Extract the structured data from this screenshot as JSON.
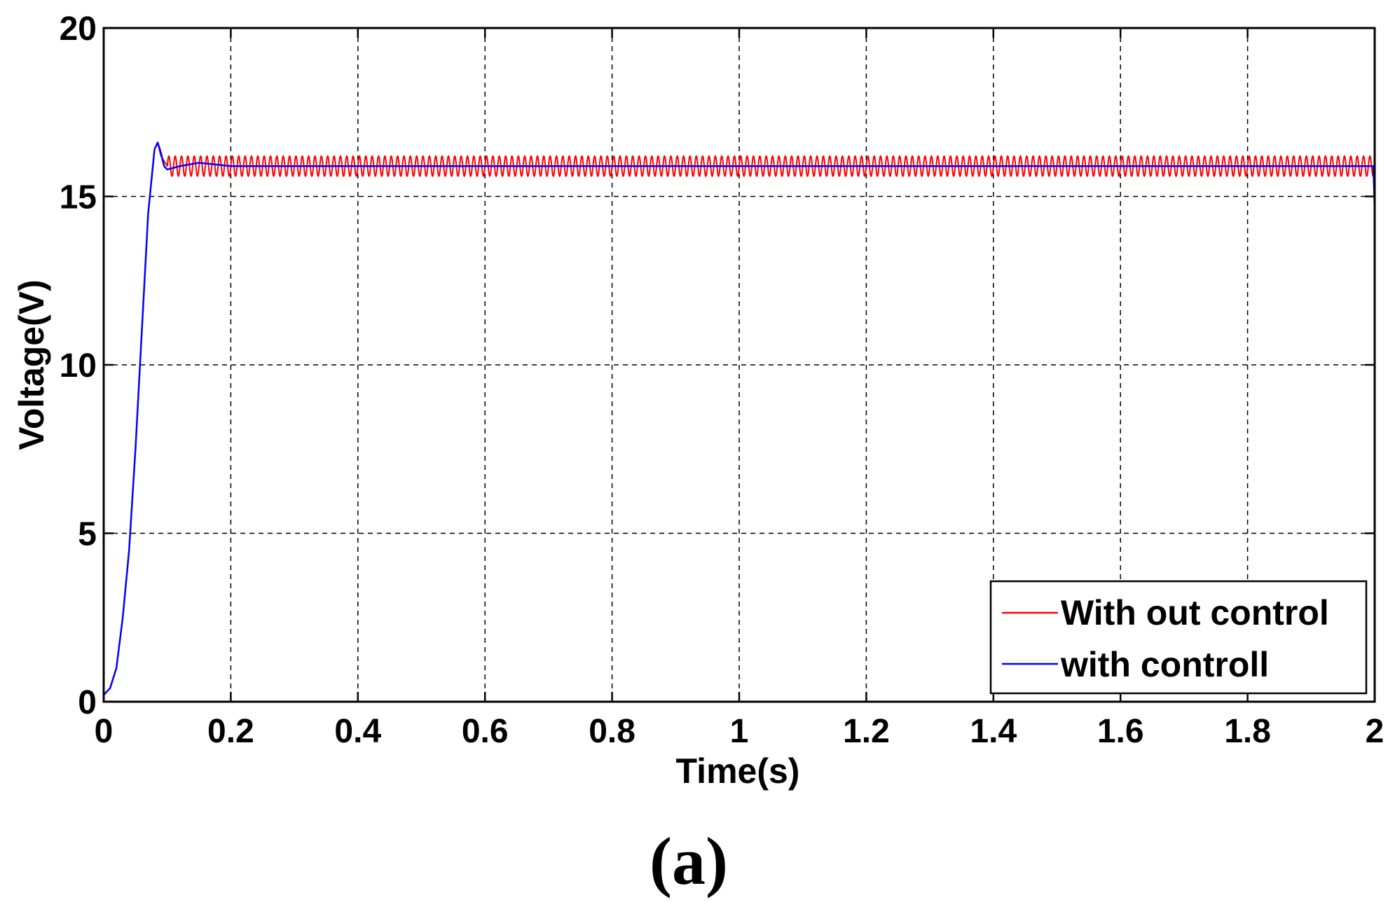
{
  "chart_data": {
    "type": "line",
    "xlabel": "Time(s)",
    "ylabel": "Voltage(V)",
    "xlim": [
      0,
      2
    ],
    "ylim": [
      0,
      20
    ],
    "xticks": [
      "0",
      "0.2",
      "0.4",
      "0.6",
      "0.8",
      "1",
      "1.2",
      "1.4",
      "1.6",
      "1.8",
      "2"
    ],
    "yticks": [
      "0",
      "5",
      "10",
      "15",
      "20"
    ],
    "grid": true,
    "legend_position": "bottom-right",
    "series": [
      {
        "name": "With out control",
        "color": "#ff0000",
        "x": [
          0,
          0.01,
          0.02,
          0.03,
          0.04,
          0.05,
          0.06,
          0.07,
          0.08,
          0.085,
          0.09,
          0.1,
          0.12,
          0.15,
          0.2,
          0.5,
          1.0,
          1.5,
          2.0
        ],
        "y": [
          0.2,
          0.4,
          1.0,
          2.5,
          4.5,
          7.5,
          11.0,
          14.5,
          16.4,
          16.6,
          16.2,
          15.9,
          16.0,
          15.9,
          15.9,
          15.9,
          15.9,
          15.9,
          15.9
        ],
        "ripple_range": [
          15.6,
          16.2
        ]
      },
      {
        "name": "with controll",
        "color": "#0000ff",
        "x": [
          0,
          0.01,
          0.02,
          0.03,
          0.04,
          0.05,
          0.06,
          0.07,
          0.08,
          0.085,
          0.09,
          0.095,
          0.1,
          0.12,
          0.15,
          0.2,
          0.5,
          1.0,
          1.5,
          1.998,
          2.0
        ],
        "y": [
          0.2,
          0.4,
          1.0,
          2.5,
          4.5,
          7.5,
          11.0,
          14.5,
          16.4,
          16.6,
          16.3,
          15.9,
          15.8,
          15.9,
          16.0,
          15.9,
          15.9,
          15.9,
          15.9,
          15.9,
          14.6
        ]
      }
    ],
    "caption": "(a)"
  }
}
